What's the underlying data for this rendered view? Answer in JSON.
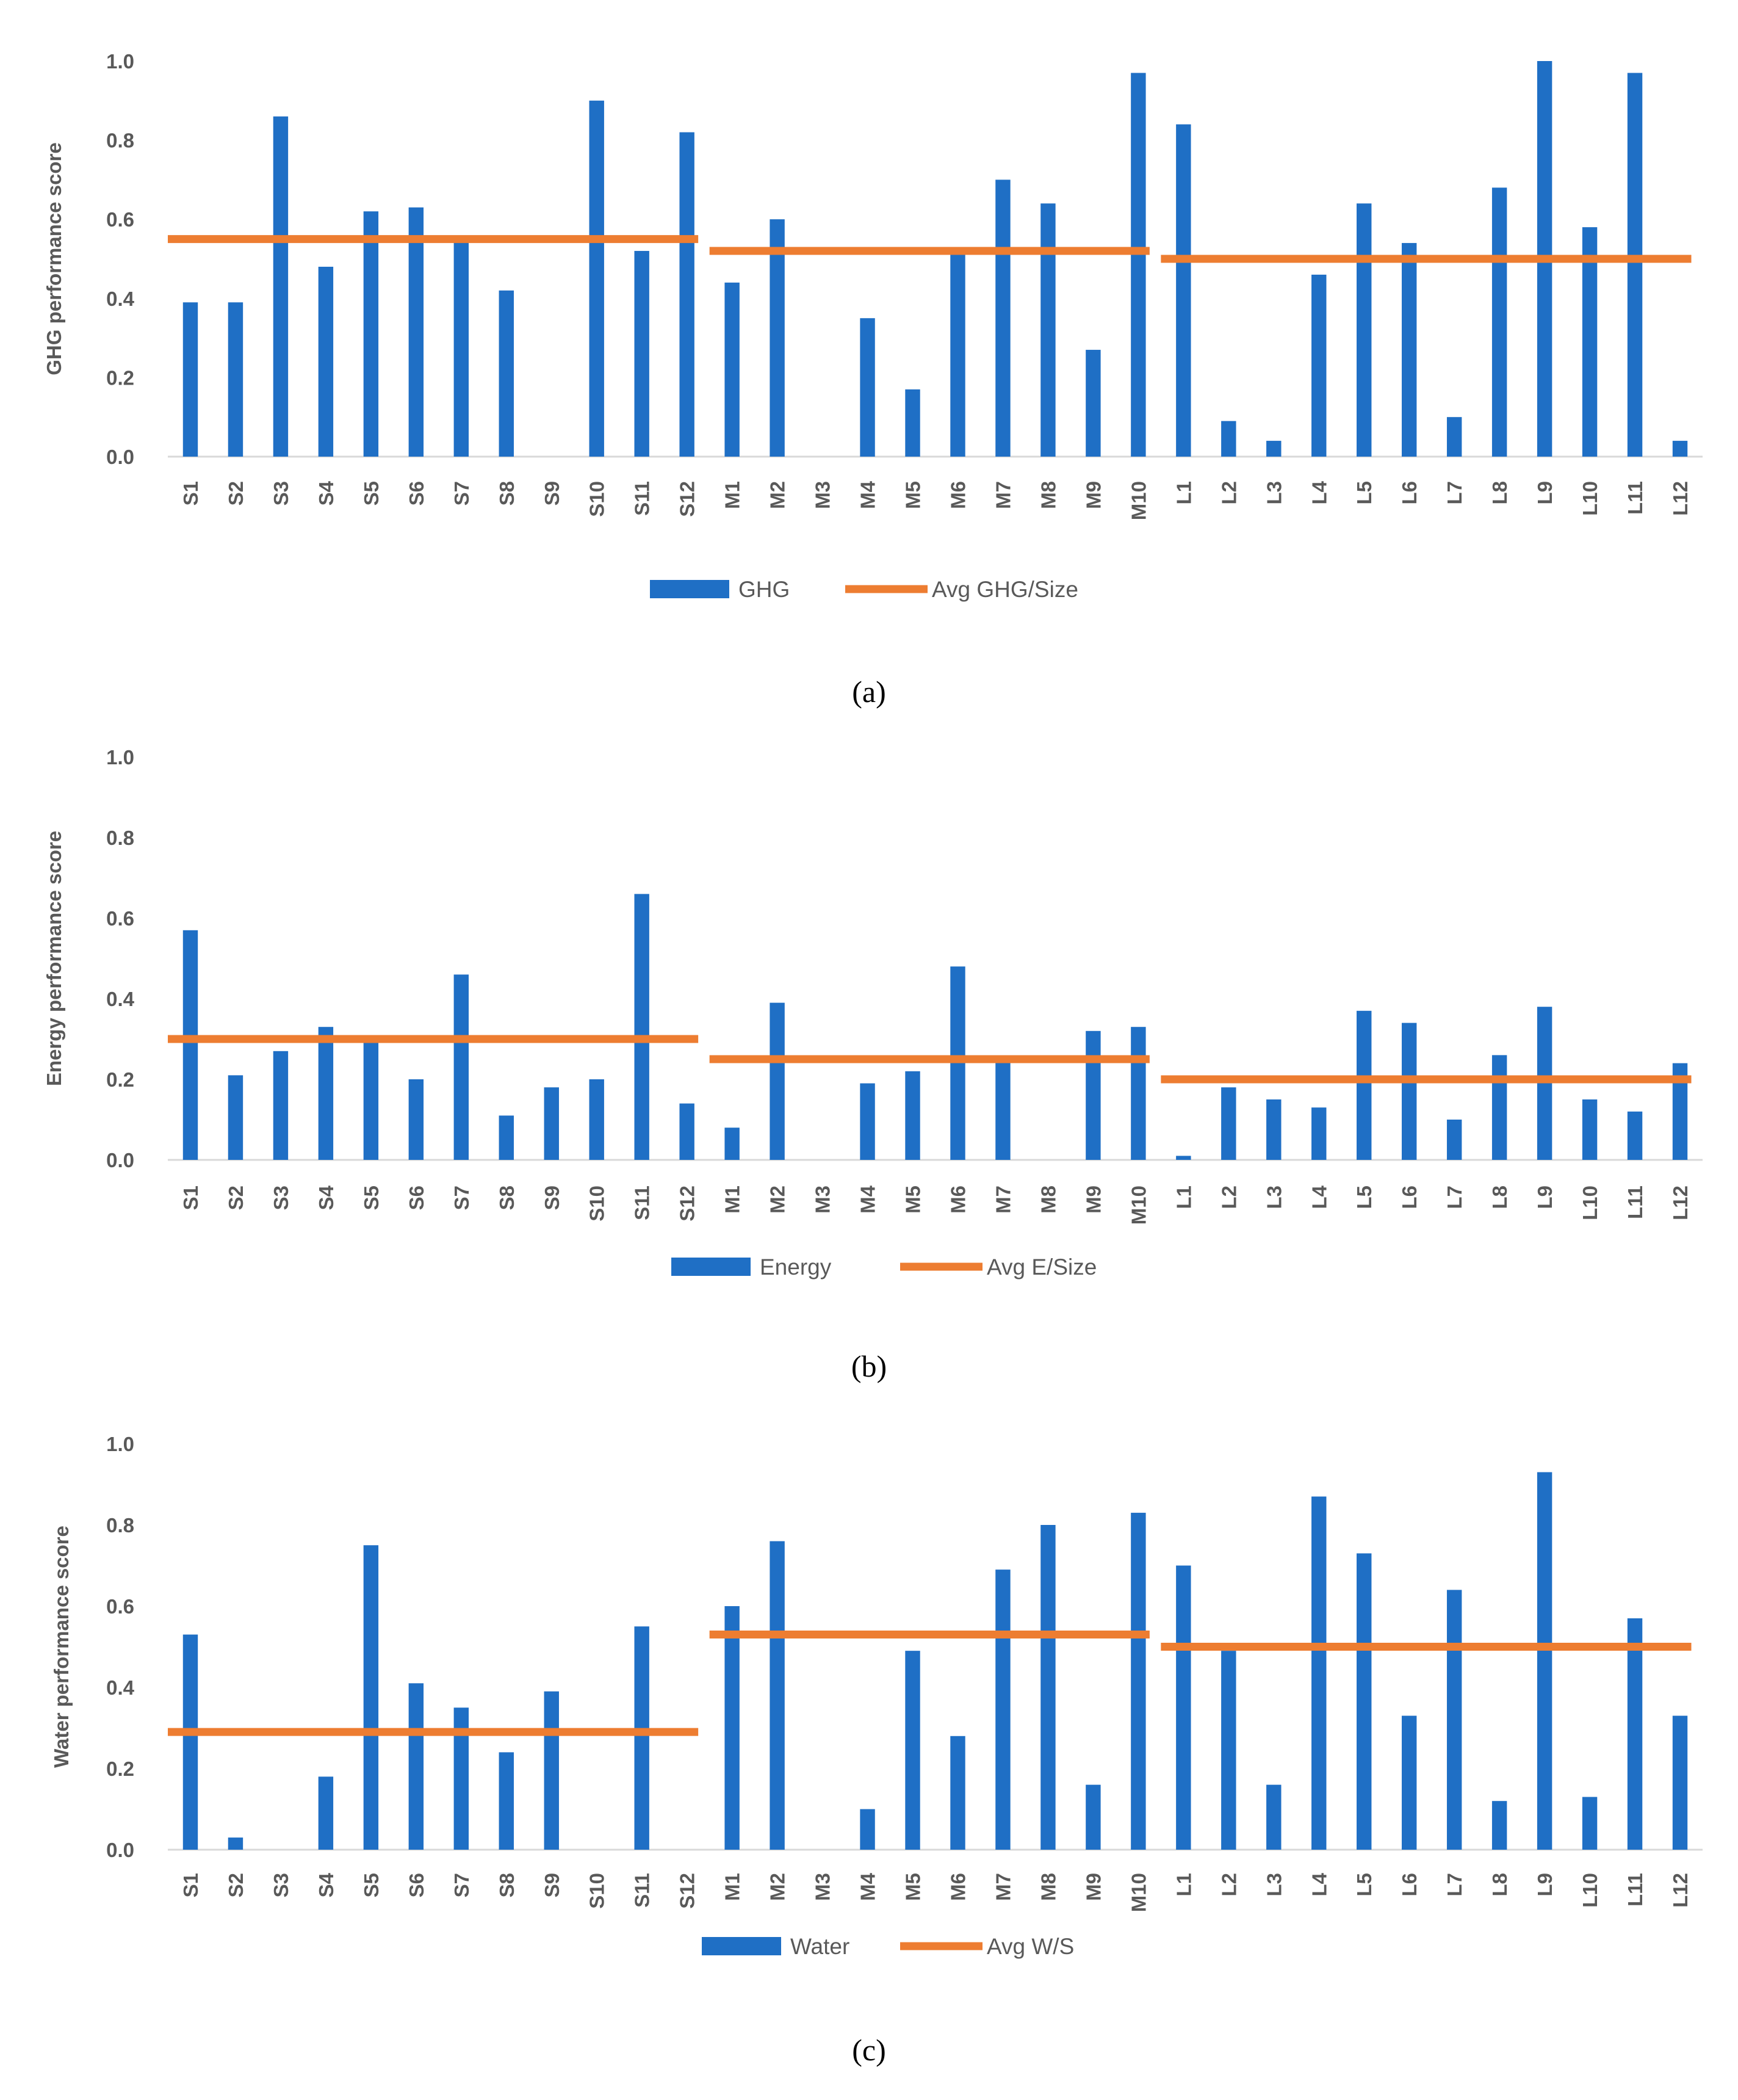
{
  "colors": {
    "bar": "#1f6fc5",
    "avg": "#ed7d31"
  },
  "chart_data": [
    {
      "type": "bar",
      "ylabel": "GHG performance score",
      "ylim": [
        0,
        1.0
      ],
      "yticks": [
        "0.0",
        "0.2",
        "0.4",
        "0.6",
        "0.8",
        "1.0"
      ],
      "categories": [
        "S1",
        "S2",
        "S3",
        "S4",
        "S5",
        "S6",
        "S7",
        "S8",
        "S9",
        "S10",
        "S11",
        "S12",
        "M1",
        "M2",
        "M3",
        "M4",
        "M5",
        "M6",
        "M7",
        "M8",
        "M9",
        "M10",
        "L1",
        "L2",
        "L3",
        "L4",
        "L5",
        "L6",
        "L7",
        "L8",
        "L9",
        "L10",
        "L11",
        "L12"
      ],
      "series": [
        {
          "name": "GHG",
          "kind": "bar",
          "values": [
            0.39,
            0.39,
            0.86,
            0.48,
            0.62,
            0.63,
            0.55,
            0.42,
            0.0,
            0.9,
            0.52,
            0.82,
            0.44,
            0.6,
            0.0,
            0.35,
            0.17,
            0.52,
            0.7,
            0.64,
            0.27,
            0.97,
            0.84,
            0.09,
            0.04,
            0.46,
            0.64,
            0.54,
            0.1,
            0.68,
            1.0,
            0.58,
            0.97,
            0.04
          ]
        },
        {
          "name": "Avg GHG/Size",
          "kind": "segment-average",
          "segments": [
            {
              "from": "S1",
              "to": "S12",
              "value": 0.55
            },
            {
              "from": "M1",
              "to": "M10",
              "value": 0.52
            },
            {
              "from": "L1",
              "to": "L12",
              "value": 0.5
            }
          ]
        }
      ],
      "legend": [
        "GHG",
        "Avg GHG/Size"
      ],
      "caption": "(a)"
    },
    {
      "type": "bar",
      "ylabel": "Energy performance score",
      "ylim": [
        0,
        1.0
      ],
      "yticks": [
        "0.0",
        "0.2",
        "0.4",
        "0.6",
        "0.8",
        "1.0"
      ],
      "categories": [
        "S1",
        "S2",
        "S3",
        "S4",
        "S5",
        "S6",
        "S7",
        "S8",
        "S9",
        "S10",
        "S11",
        "S12",
        "M1",
        "M2",
        "M3",
        "M4",
        "M5",
        "M6",
        "M7",
        "M8",
        "M9",
        "M10",
        "L1",
        "L2",
        "L3",
        "L4",
        "L5",
        "L6",
        "L7",
        "L8",
        "L9",
        "L10",
        "L11",
        "L12"
      ],
      "series": [
        {
          "name": "Energy",
          "kind": "bar",
          "values": [
            0.57,
            0.21,
            0.27,
            0.33,
            0.3,
            0.2,
            0.46,
            0.11,
            0.18,
            0.2,
            0.66,
            0.14,
            0.08,
            0.39,
            0.0,
            0.19,
            0.22,
            0.48,
            0.25,
            0.0,
            0.32,
            0.33,
            0.01,
            0.18,
            0.15,
            0.13,
            0.37,
            0.34,
            0.1,
            0.26,
            0.38,
            0.15,
            0.12,
            0.24
          ]
        },
        {
          "name": "Avg E/Size",
          "kind": "segment-average",
          "segments": [
            {
              "from": "S1",
              "to": "S12",
              "value": 0.3
            },
            {
              "from": "M1",
              "to": "M10",
              "value": 0.25
            },
            {
              "from": "L1",
              "to": "L12",
              "value": 0.2
            }
          ]
        }
      ],
      "legend": [
        "Energy",
        "Avg E/Size"
      ],
      "caption": "(b)"
    },
    {
      "type": "bar",
      "ylabel": "Water performance score",
      "ylim": [
        0,
        1.0
      ],
      "yticks": [
        "0.0",
        "0.2",
        "0.4",
        "0.6",
        "0.8",
        "1.0"
      ],
      "categories": [
        "S1",
        "S2",
        "S3",
        "S4",
        "S5",
        "S6",
        "S7",
        "S8",
        "S9",
        "S10",
        "S11",
        "S12",
        "M1",
        "M2",
        "M3",
        "M4",
        "M5",
        "M6",
        "M7",
        "M8",
        "M9",
        "M10",
        "L1",
        "L2",
        "L3",
        "L4",
        "L5",
        "L6",
        "L7",
        "L8",
        "L9",
        "L10",
        "L11",
        "L12"
      ],
      "series": [
        {
          "name": "Water",
          "kind": "bar",
          "values": [
            0.53,
            0.03,
            0.0,
            0.18,
            0.75,
            0.41,
            0.35,
            0.24,
            0.39,
            0.0,
            0.55,
            0.0,
            0.6,
            0.76,
            0.0,
            0.1,
            0.49,
            0.28,
            0.69,
            0.8,
            0.16,
            0.83,
            0.7,
            0.49,
            0.16,
            0.87,
            0.73,
            0.33,
            0.64,
            0.12,
            0.93,
            0.13,
            0.57,
            0.33
          ]
        },
        {
          "name": "Avg W/S",
          "kind": "segment-average",
          "segments": [
            {
              "from": "S1",
              "to": "S12",
              "value": 0.29
            },
            {
              "from": "M1",
              "to": "M10",
              "value": 0.53
            },
            {
              "from": "L1",
              "to": "L12",
              "value": 0.5
            }
          ]
        }
      ],
      "legend": [
        "Water",
        "Avg W/S"
      ],
      "caption": "(c)"
    }
  ]
}
